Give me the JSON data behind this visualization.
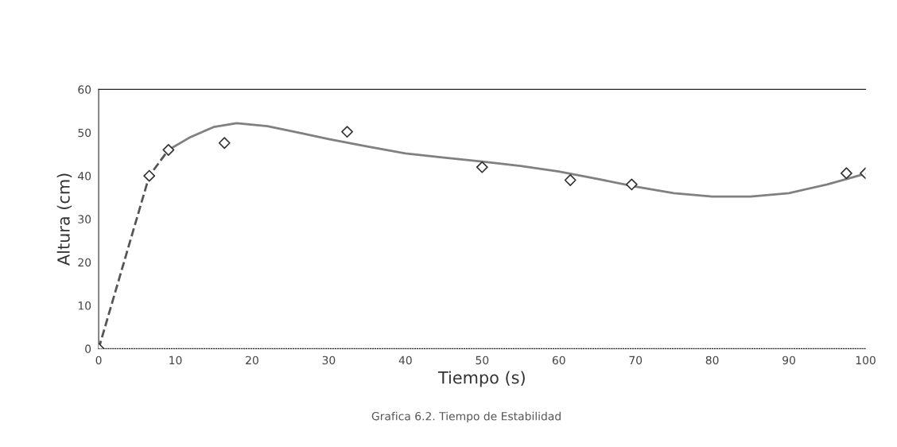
{
  "chart_data": {
    "type": "scatter",
    "xlabel": "Tiempo (s)",
    "ylabel": "Altura (cm)",
    "annotations": [
      "Grafica 6.2. Tiempo de Estabilidad"
    ],
    "xlim": [
      0,
      100
    ],
    "xticks": [
      0,
      10,
      20,
      30,
      40,
      50,
      60,
      70,
      80,
      90,
      100
    ],
    "ylim": [
      0,
      60
    ],
    "yticks": [
      0,
      10,
      20,
      30,
      40,
      50,
      60
    ],
    "grid": false,
    "series": [
      {
        "type": "line",
        "line_style": "dashed",
        "marker": "none",
        "color": "#555555",
        "x": [
          0,
          6.6,
          9.1
        ],
        "values": [
          0,
          40,
          46
        ]
      },
      {
        "type": "line",
        "line_style": "solid",
        "marker": "none",
        "color": "#808080",
        "x": [
          9.1,
          12,
          15,
          18,
          22,
          26,
          30,
          35,
          40,
          45,
          50,
          55,
          60,
          65,
          70,
          75,
          80,
          85,
          90,
          95,
          100
        ],
        "values": [
          46,
          49,
          51.3,
          52.2,
          51.5,
          50,
          48.5,
          46.8,
          45.2,
          44.2,
          43.3,
          42.3,
          41,
          39.3,
          37.5,
          36,
          35.2,
          35.2,
          36,
          38,
          40.5
        ]
      },
      {
        "marker": "diamond",
        "color": "#333333",
        "x": [
          0,
          6.6,
          9.1,
          16.4,
          32.4,
          50,
          61.5,
          69.5,
          97.5,
          100
        ],
        "values": [
          0,
          40,
          46,
          47.6,
          50.2,
          42,
          39,
          38,
          40.6,
          40.6
        ]
      }
    ]
  }
}
